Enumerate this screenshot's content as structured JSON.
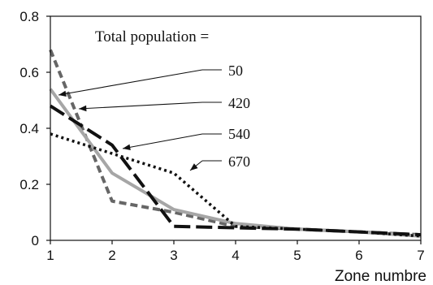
{
  "chart_data": {
    "type": "line",
    "x": [
      1,
      2,
      3,
      4,
      5,
      6,
      7
    ],
    "xlim": [
      1,
      7
    ],
    "ylim": [
      0,
      0.8
    ],
    "xticks": [
      "1",
      "2",
      "3",
      "4",
      "5",
      "6",
      "7"
    ],
    "yticks": [
      "0",
      "0.2",
      "0.4",
      "0.6",
      "0.8"
    ],
    "xlabel": "Zone numbre",
    "ylabel": "",
    "annotation_title": "Total population =",
    "grid": false,
    "series": [
      {
        "name": "50",
        "style": "dashed-gray",
        "color": "#666666",
        "values": [
          0.68,
          0.14,
          0.1,
          0.05,
          0.04,
          0.03,
          0.02
        ]
      },
      {
        "name": "420",
        "style": "solid-gray",
        "color": "#a6a6a6",
        "values": [
          0.54,
          0.24,
          0.11,
          0.06,
          0.04,
          0.03,
          0.015
        ]
      },
      {
        "name": "540",
        "style": "longdash-black",
        "color": "#111111",
        "values": [
          0.48,
          0.34,
          0.05,
          0.045,
          0.04,
          0.03,
          0.02
        ]
      },
      {
        "name": "670",
        "style": "dotted-black",
        "color": "#111111",
        "values": [
          0.38,
          0.31,
          0.24,
          0.05,
          0.04,
          0.03,
          0.015
        ]
      }
    ]
  }
}
